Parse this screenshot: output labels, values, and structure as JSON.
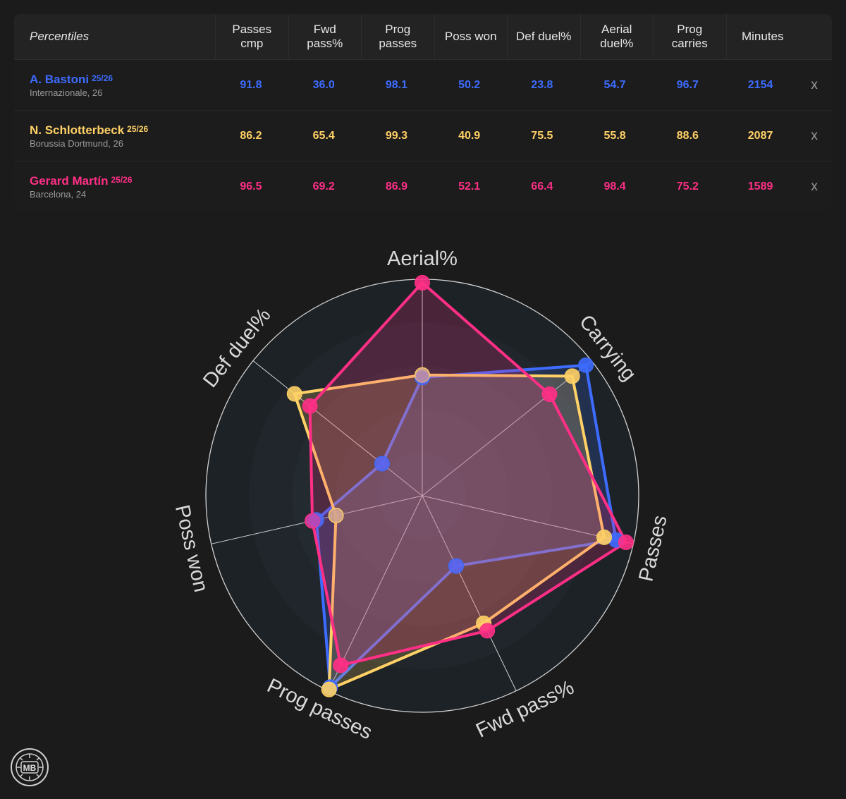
{
  "table": {
    "header_first": "Percentiles",
    "columns": [
      "Passes\ncmp",
      "Fwd\npass%",
      "Prog\npasses",
      "Poss won",
      "Def duel%",
      "Aerial\nduel%",
      "Prog\ncarries",
      "Minutes"
    ],
    "remove_label": "x",
    "players": [
      {
        "name": "A. Bastoni",
        "season": "25/26",
        "club": "Internazionale, 26",
        "color": "#3d6cff",
        "values": [
          "91.8",
          "36.0",
          "98.1",
          "50.2",
          "23.8",
          "54.7",
          "96.7",
          "2154"
        ]
      },
      {
        "name": "N. Schlotterbeck",
        "season": "25/26",
        "club": "Borussia Dortmund, 26",
        "color": "#ffd166",
        "values": [
          "86.2",
          "65.4",
          "99.3",
          "40.9",
          "75.5",
          "55.8",
          "88.6",
          "2087"
        ]
      },
      {
        "name": "Gerard Martín",
        "season": "25/26",
        "club": "Barcelona, 24",
        "color": "#ff2f86",
        "values": [
          "96.5",
          "69.2",
          "86.9",
          "52.1",
          "66.4",
          "98.4",
          "75.2",
          "1589"
        ]
      }
    ]
  },
  "chart_data": {
    "type": "radar",
    "axes": [
      "Aerial%",
      "Carrying",
      "Passes",
      "Fwd pass%",
      "Prog passes",
      "Poss won",
      "Def duel%"
    ],
    "range": [
      0,
      100
    ],
    "series": [
      {
        "name": "A. Bastoni",
        "color": "#3d6cff",
        "values": [
          54.7,
          96.7,
          91.8,
          36.0,
          98.1,
          50.2,
          23.8
        ]
      },
      {
        "name": "N. Schlotterbeck",
        "color": "#ffd166",
        "values": [
          55.8,
          88.6,
          86.2,
          65.4,
          99.3,
          40.9,
          75.5
        ]
      },
      {
        "name": "Gerard Martín",
        "color": "#ff2f86",
        "values": [
          98.4,
          75.2,
          96.5,
          69.2,
          86.9,
          52.1,
          66.4
        ]
      }
    ]
  },
  "logo": {
    "text": "MB"
  }
}
